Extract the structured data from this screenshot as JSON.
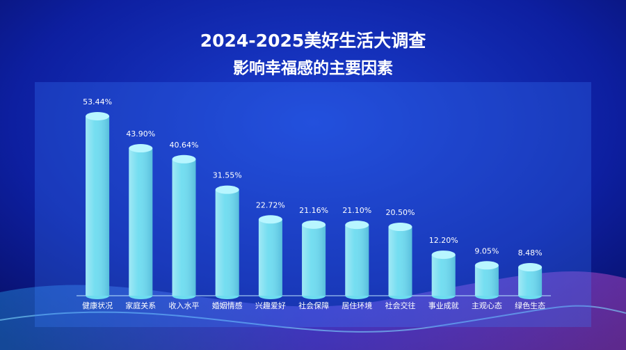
{
  "chart_data": {
    "type": "bar",
    "title": "2024-2025美好生活大调查",
    "subtitle": "影响幸福感的主要因素",
    "categories": [
      "健康状况",
      "家庭关系",
      "收入水平",
      "婚姻情感",
      "兴趣爱好",
      "社会保障",
      "居住环境",
      "社会交往",
      "事业成就",
      "主观心态",
      "绿色生态"
    ],
    "values": [
      53.44,
      43.9,
      40.64,
      31.55,
      22.72,
      21.16,
      21.1,
      20.5,
      12.2,
      9.05,
      8.48
    ],
    "value_labels": [
      "53.44%",
      "43.90%",
      "40.64%",
      "31.55%",
      "22.72%",
      "21.16%",
      "21.10%",
      "20.50%",
      "12.20%",
      "9.05%",
      "8.48%"
    ],
    "color": "#6ddcf0"
  }
}
